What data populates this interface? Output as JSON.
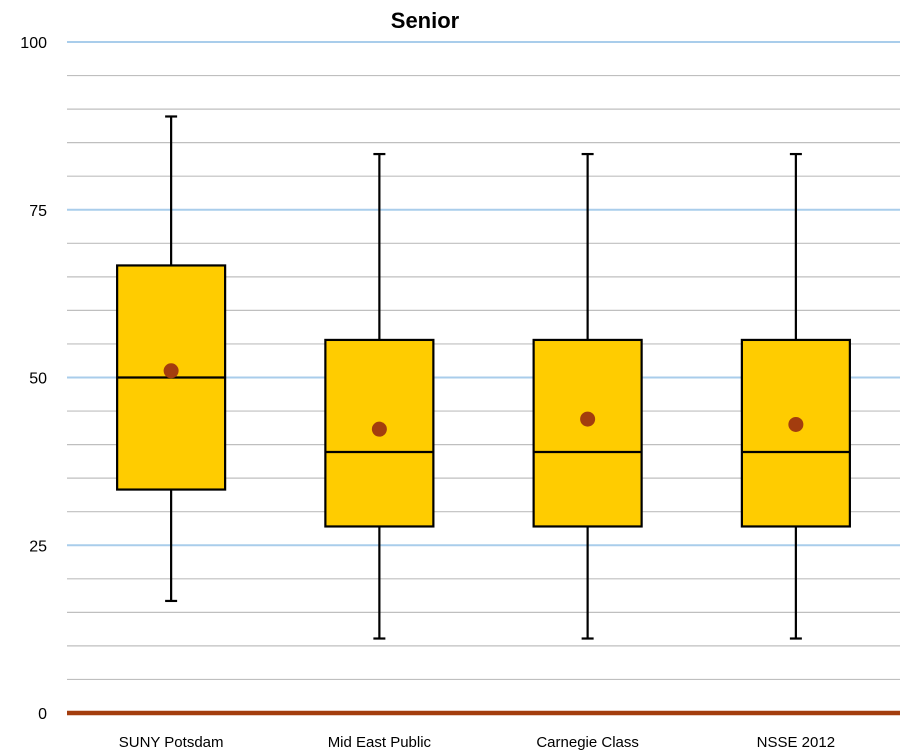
{
  "chart_data": {
    "type": "boxplot",
    "title": "Senior",
    "xlabel": "",
    "ylabel": "",
    "ylim": [
      0,
      100
    ],
    "yticks": [
      "0",
      "25",
      "50",
      "75",
      "100"
    ],
    "minor_grid_step": 5,
    "categories": [
      "SUNY Potsdam",
      "Mid East Public",
      "Carnegie Class",
      "NSSE 2012"
    ],
    "boxes": [
      {
        "whisker_low": 16.7,
        "q1": 33.3,
        "median": 50.0,
        "q3": 66.7,
        "whisker_high": 88.9,
        "mean": 51.0
      },
      {
        "whisker_low": 11.1,
        "q1": 27.8,
        "median": 38.9,
        "q3": 55.6,
        "whisker_high": 83.3,
        "mean": 42.3
      },
      {
        "whisker_low": 11.1,
        "q1": 27.8,
        "median": 38.9,
        "q3": 55.6,
        "whisker_high": 83.3,
        "mean": 43.8
      },
      {
        "whisker_low": 11.1,
        "q1": 27.8,
        "median": 38.9,
        "q3": 55.6,
        "whisker_high": 83.3,
        "mean": 43.0
      }
    ],
    "colors": {
      "box_fill": "#FFCC00",
      "box_stroke": "#000000",
      "mean_dot": "#A33D0E",
      "major_grid": "#A9CDEB",
      "minor_grid": "#BFBFBF",
      "baseline": "#A33D0E"
    },
    "grid": true,
    "legend": "none"
  }
}
